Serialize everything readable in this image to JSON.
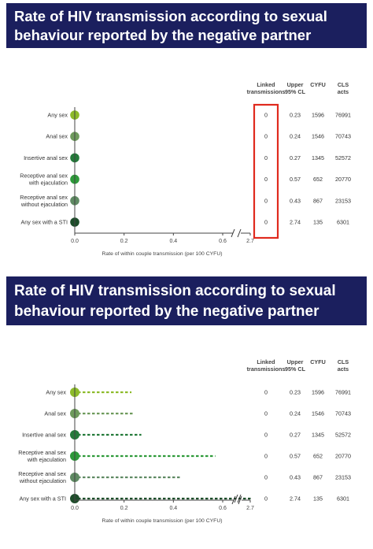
{
  "top_panel": {
    "title_line1": "Rate of HIV transmission according to sexual",
    "title_line2": "behaviour reported by the negative partner"
  },
  "bottom_panel": {
    "title_line1": "Rate of HIV transmission according to sexual",
    "title_line2": "behaviour reported by the negative partner"
  },
  "table_headers": {
    "linked_1": "Linked",
    "linked_2": "transmissions",
    "upper_1": "Upper",
    "upper_2": "95% CL",
    "cyfu": "CYFU",
    "cls_1": "CLS",
    "cls_2": "acts"
  },
  "highlight_color": "#e02a1e",
  "chart_data": [
    {
      "type": "scatter",
      "title": "Rate of HIV transmission according to sexual behaviour reported by the negative partner",
      "xlabel": "Rate of within couple transmission (per 100 CYFU)",
      "xticks": [
        "0.0",
        "0.2",
        "0.4",
        "0.6",
        "2.7"
      ],
      "axis_break": "between 0.6 and 2.7",
      "categories": [
        "Any sex",
        "Anal sex",
        "Insertive anal sex",
        "Receptive anal sex with ejaculation",
        "Receptive anal sex without ejaculation",
        "Any sex with a STI"
      ],
      "category_lines": [
        [
          "Any sex"
        ],
        [
          "Anal sex"
        ],
        [
          "Insertive anal sex"
        ],
        [
          "Receptive anal sex",
          "with ejaculation"
        ],
        [
          "Receptive anal sex",
          "without ejaculation"
        ],
        [
          "Any sex with a STI"
        ]
      ],
      "point_colors": [
        "#8dbb2a",
        "#6e9a5c",
        "#247a3a",
        "#2e9a3a",
        "#5f8a63",
        "#1d4d2a"
      ],
      "rates": [
        0,
        0,
        0,
        0,
        0,
        0
      ],
      "linked_transmissions": [
        0,
        0,
        0,
        0,
        0,
        0
      ],
      "upper_95_cl": [
        0.23,
        0.24,
        0.27,
        0.57,
        0.43,
        2.74
      ],
      "cyfu": [
        1596,
        1546,
        1345,
        652,
        867,
        135
      ],
      "cls_acts": [
        76991,
        70743,
        52572,
        20770,
        23153,
        6301
      ],
      "linked_transmissions_boxed": true
    },
    {
      "type": "scatter",
      "title": "Rate of HIV transmission according to sexual behaviour reported by the negative partner",
      "xlabel": "Rate of within couple transmission (per 100 CYFU)",
      "xticks": [
        "0.0",
        "0.2",
        "0.4",
        "0.6",
        "2.7"
      ],
      "axis_break": "between 0.6 and 2.7",
      "categories": [
        "Any sex",
        "Anal sex",
        "Insertive anal sex",
        "Receptive anal sex with ejaculation",
        "Receptive anal sex without ejaculation",
        "Any sex with a STI"
      ],
      "category_lines": [
        [
          "Any sex"
        ],
        [
          "Anal sex"
        ],
        [
          "Insertive anal sex"
        ],
        [
          "Receptive anal sex",
          "with ejaculation"
        ],
        [
          "Receptive anal sex",
          "without ejaculation"
        ],
        [
          "Any sex with a STI"
        ]
      ],
      "point_colors": [
        "#8dbb2a",
        "#6e9a5c",
        "#247a3a",
        "#2e9a3a",
        "#5f8a63",
        "#1d4d2a"
      ],
      "rates": [
        0,
        0,
        0,
        0,
        0,
        0
      ],
      "ci_upper": [
        0.23,
        0.24,
        0.27,
        0.57,
        0.43,
        2.74
      ],
      "linked_transmissions": [
        0,
        0,
        0,
        0,
        0,
        0
      ],
      "upper_95_cl": [
        0.23,
        0.24,
        0.27,
        0.57,
        0.43,
        2.74
      ],
      "cyfu": [
        1596,
        1546,
        1345,
        652,
        867,
        135
      ],
      "cls_acts": [
        76991,
        70743,
        52572,
        20770,
        23153,
        6301
      ],
      "linked_transmissions_boxed": false
    }
  ]
}
